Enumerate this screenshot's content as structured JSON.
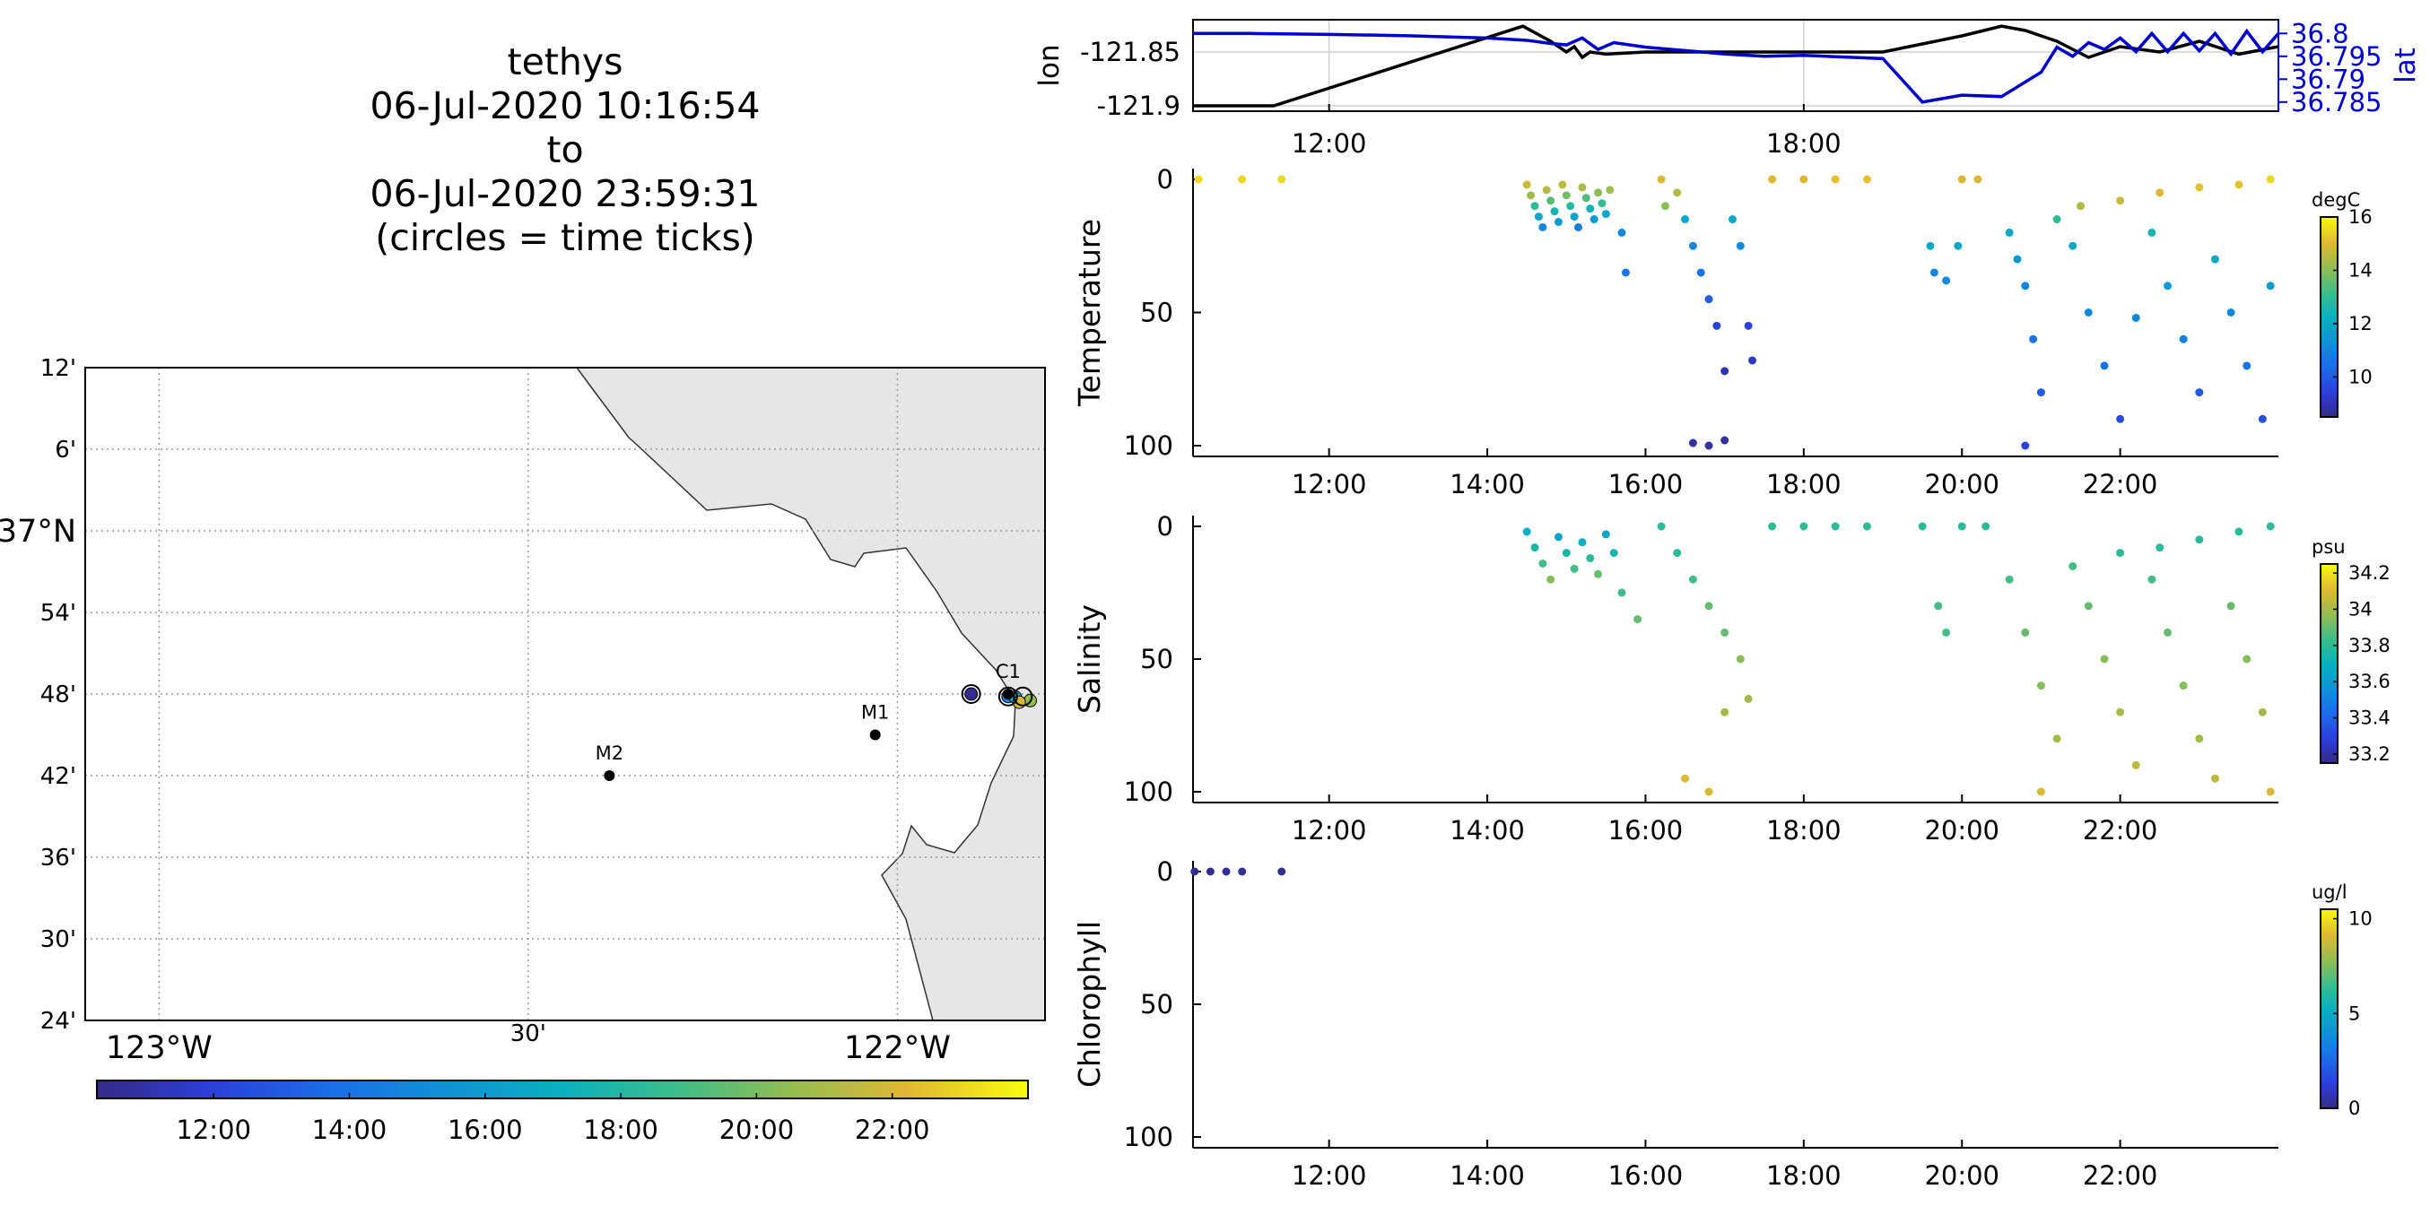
{
  "title_lines": [
    "tethys",
    "06-Jul-2020 10:16:54",
    "to",
    "06-Jul-2020 23:59:31",
    "(circles = time ticks)"
  ],
  "colors": {
    "land": "#e6e6e6",
    "lat_line": "#0000cc",
    "lon_line": "#000000"
  },
  "chart_data": [
    {
      "type": "line",
      "panel": "lon-lat",
      "x_unit": "hour of day",
      "xlim": [
        10.28,
        24.0
      ],
      "xticks": [
        12,
        18
      ],
      "xtick_labels": [
        "12:00",
        "18:00"
      ],
      "ylabel_left": "lon",
      "ylabel_right": "lat",
      "ylim_left": [
        -121.905,
        -121.82
      ],
      "ylim_right": [
        36.783,
        36.803
      ],
      "yticks_left": [
        -121.9,
        -121.85
      ],
      "ytick_labels_left": [
        "-121.9",
        "-121.85"
      ],
      "yticks_right": [
        36.785,
        36.79,
        36.795,
        36.8
      ],
      "ytick_labels_right": [
        "36.785",
        "36.79",
        "36.795",
        "36.8"
      ],
      "grid": true,
      "series": [
        {
          "axis": "left",
          "color": "#000000",
          "x": [
            10.28,
            11.3,
            14.45,
            14.8,
            15.0,
            15.1,
            15.2,
            15.3,
            15.5,
            16.0,
            17.0,
            18.0,
            19.0,
            20.0,
            20.5,
            20.8,
            21.2,
            21.6,
            22.0,
            22.5,
            23.0,
            23.5,
            24.0
          ],
          "y": [
            -121.9,
            -121.9,
            -121.826,
            -121.84,
            -121.85,
            -121.845,
            -121.855,
            -121.85,
            -121.852,
            -121.85,
            -121.85,
            -121.85,
            -121.85,
            -121.835,
            -121.826,
            -121.83,
            -121.84,
            -121.855,
            -121.845,
            -121.85,
            -121.84,
            -121.852,
            -121.845
          ]
        },
        {
          "axis": "right",
          "color": "#0000cc",
          "x": [
            10.28,
            11.0,
            12.0,
            13.0,
            14.0,
            14.5,
            14.8,
            15.0,
            15.2,
            15.4,
            15.6,
            16.0,
            17.0,
            17.5,
            18.0,
            19.0,
            19.5,
            20.0,
            20.5,
            21.0,
            21.2,
            21.4,
            21.6,
            21.8,
            22.0,
            22.2,
            22.4,
            22.6,
            22.8,
            23.0,
            23.2,
            23.4,
            23.6,
            23.8,
            24.0
          ],
          "y": [
            36.8,
            36.8,
            36.7998,
            36.7995,
            36.799,
            36.7985,
            36.7978,
            36.7975,
            36.799,
            36.7965,
            36.798,
            36.797,
            36.7955,
            36.795,
            36.7952,
            36.7945,
            36.785,
            36.7865,
            36.7862,
            36.7915,
            36.797,
            36.795,
            36.798,
            36.7965,
            36.799,
            36.796,
            36.8,
            36.796,
            36.8,
            36.7962,
            36.8,
            36.7955,
            36.8005,
            36.796,
            36.8
          ]
        }
      ]
    },
    {
      "type": "scatter",
      "panel": "temperature",
      "ylabel": "Temperature",
      "ylim": [
        100,
        0
      ],
      "yticks": [
        0,
        50,
        100
      ],
      "xlim": [
        10.28,
        24.0
      ],
      "xticks": [
        12,
        14,
        16,
        18,
        20,
        22
      ],
      "xtick_labels": [
        "12:00",
        "14:00",
        "16:00",
        "18:00",
        "20:00",
        "22:00"
      ],
      "colorbar": {
        "label": "degC",
        "range": [
          8.5,
          16
        ],
        "ticks": [
          10,
          12,
          14,
          16
        ],
        "tick_labels": [
          "10",
          "12",
          "14",
          "16"
        ]
      },
      "points": [
        [
          10.35,
          0,
          15.5
        ],
        [
          10.9,
          0,
          15.5
        ],
        [
          11.4,
          0,
          15.5
        ],
        [
          14.5,
          2,
          14.8
        ],
        [
          14.55,
          6,
          14.2
        ],
        [
          14.6,
          10,
          13
        ],
        [
          14.65,
          14,
          12
        ],
        [
          14.7,
          18,
          11
        ],
        [
          14.75,
          4,
          14.5
        ],
        [
          14.8,
          8,
          13.5
        ],
        [
          14.85,
          12,
          12.5
        ],
        [
          14.9,
          16,
          11.5
        ],
        [
          14.95,
          2,
          14.6
        ],
        [
          15.0,
          6,
          13.8
        ],
        [
          15.05,
          10,
          12.8
        ],
        [
          15.1,
          14,
          11.8
        ],
        [
          15.15,
          18,
          10.8
        ],
        [
          15.2,
          3,
          14.4
        ],
        [
          15.25,
          7,
          13.4
        ],
        [
          15.3,
          11,
          12.4
        ],
        [
          15.35,
          15,
          11.4
        ],
        [
          15.4,
          5,
          14
        ],
        [
          15.45,
          9,
          13
        ],
        [
          15.5,
          13,
          12
        ],
        [
          15.55,
          4,
          14.2
        ],
        [
          15.7,
          20,
          11
        ],
        [
          15.75,
          35,
          10.5
        ],
        [
          16.2,
          0,
          15
        ],
        [
          16.25,
          10,
          14
        ],
        [
          16.4,
          5,
          14.5
        ],
        [
          16.5,
          15,
          12
        ],
        [
          16.6,
          25,
          11
        ],
        [
          16.7,
          35,
          10.5
        ],
        [
          16.8,
          45,
          10
        ],
        [
          16.9,
          55,
          9.5
        ],
        [
          17.0,
          72,
          9
        ],
        [
          16.6,
          99,
          8.8
        ],
        [
          16.8,
          100,
          8.8
        ],
        [
          17.0,
          98,
          8.8
        ],
        [
          17.1,
          15,
          12
        ],
        [
          17.2,
          25,
          11
        ],
        [
          17.3,
          55,
          9.5
        ],
        [
          17.35,
          68,
          9.2
        ],
        [
          17.6,
          0,
          15
        ],
        [
          18.0,
          0,
          15
        ],
        [
          18.4,
          0,
          15.2
        ],
        [
          18.8,
          0,
          15.2
        ],
        [
          19.6,
          25,
          12
        ],
        [
          19.65,
          35,
          11
        ],
        [
          19.8,
          38,
          11
        ],
        [
          19.95,
          25,
          12
        ],
        [
          20.0,
          0,
          15
        ],
        [
          20.2,
          0,
          15
        ],
        [
          20.6,
          20,
          12
        ],
        [
          20.7,
          30,
          11.5
        ],
        [
          20.8,
          40,
          11
        ],
        [
          20.9,
          60,
          10.5
        ],
        [
          21.0,
          80,
          10
        ],
        [
          20.8,
          100,
          9.5
        ],
        [
          21.2,
          15,
          13
        ],
        [
          21.4,
          25,
          12
        ],
        [
          21.6,
          50,
          11
        ],
        [
          21.8,
          70,
          10.5
        ],
        [
          22.0,
          90,
          9.8
        ],
        [
          22.2,
          52,
          11
        ],
        [
          22.4,
          20,
          12.5
        ],
        [
          22.6,
          40,
          11.5
        ],
        [
          22.8,
          60,
          10.8
        ],
        [
          23.0,
          80,
          10
        ],
        [
          23.2,
          30,
          12
        ],
        [
          23.4,
          50,
          11
        ],
        [
          23.6,
          70,
          10.5
        ],
        [
          23.8,
          90,
          9.8
        ],
        [
          23.9,
          40,
          11.5
        ],
        [
          21.5,
          10,
          14.5
        ],
        [
          22.0,
          8,
          14.8
        ],
        [
          22.5,
          5,
          15
        ],
        [
          23.0,
          3,
          15.2
        ],
        [
          23.5,
          2,
          15.2
        ],
        [
          23.9,
          0,
          15.5
        ]
      ]
    },
    {
      "type": "scatter",
      "panel": "salinity",
      "ylabel": "Salinity",
      "ylim": [
        100,
        0
      ],
      "yticks": [
        0,
        50,
        100
      ],
      "xlim": [
        10.28,
        24.0
      ],
      "xticks": [
        12,
        14,
        16,
        18,
        20,
        22
      ],
      "xtick_labels": [
        "12:00",
        "14:00",
        "16:00",
        "18:00",
        "20:00",
        "22:00"
      ],
      "colorbar": {
        "label": "psu",
        "range": [
          33.15,
          34.25
        ],
        "ticks": [
          33.2,
          33.4,
          33.6,
          33.8,
          34,
          34.2
        ],
        "tick_labels": [
          "33.2",
          "33.4",
          "33.6",
          "33.8",
          "34",
          "34.2"
        ]
      },
      "points": [
        [
          14.5,
          2,
          33.7
        ],
        [
          14.6,
          8,
          33.75
        ],
        [
          14.7,
          14,
          33.85
        ],
        [
          14.8,
          20,
          33.95
        ],
        [
          14.9,
          4,
          33.65
        ],
        [
          15.0,
          10,
          33.75
        ],
        [
          15.1,
          16,
          33.85
        ],
        [
          15.2,
          6,
          33.7
        ],
        [
          15.3,
          12,
          33.8
        ],
        [
          15.4,
          18,
          33.9
        ],
        [
          15.5,
          3,
          33.65
        ],
        [
          15.6,
          10,
          33.75
        ],
        [
          15.7,
          25,
          33.85
        ],
        [
          15.9,
          35,
          33.9
        ],
        [
          16.2,
          0,
          33.8
        ],
        [
          16.4,
          10,
          33.8
        ],
        [
          16.6,
          20,
          33.85
        ],
        [
          16.8,
          30,
          33.9
        ],
        [
          17.0,
          40,
          33.9
        ],
        [
          17.2,
          50,
          33.95
        ],
        [
          16.5,
          95,
          34.1
        ],
        [
          16.8,
          100,
          34.1
        ],
        [
          17.0,
          70,
          34.0
        ],
        [
          17.3,
          65,
          34.0
        ],
        [
          17.6,
          0,
          33.8
        ],
        [
          18.0,
          0,
          33.8
        ],
        [
          18.4,
          0,
          33.8
        ],
        [
          18.8,
          0,
          33.8
        ],
        [
          19.5,
          0,
          33.8
        ],
        [
          19.7,
          30,
          33.85
        ],
        [
          19.8,
          40,
          33.85
        ],
        [
          20.0,
          0,
          33.8
        ],
        [
          20.3,
          0,
          33.8
        ],
        [
          20.6,
          20,
          33.85
        ],
        [
          20.8,
          40,
          33.9
        ],
        [
          21.0,
          60,
          33.95
        ],
        [
          21.2,
          80,
          34.0
        ],
        [
          21.0,
          100,
          34.1
        ],
        [
          21.4,
          15,
          33.85
        ],
        [
          21.6,
          30,
          33.9
        ],
        [
          21.8,
          50,
          33.95
        ],
        [
          22.0,
          70,
          34.0
        ],
        [
          22.2,
          90,
          34.05
        ],
        [
          22.4,
          20,
          33.85
        ],
        [
          22.6,
          40,
          33.9
        ],
        [
          22.8,
          60,
          33.95
        ],
        [
          23.0,
          80,
          34.0
        ],
        [
          23.2,
          95,
          34.05
        ],
        [
          23.4,
          30,
          33.9
        ],
        [
          23.6,
          50,
          33.95
        ],
        [
          23.8,
          70,
          34.0
        ],
        [
          23.9,
          100,
          34.1
        ],
        [
          22.0,
          10,
          33.8
        ],
        [
          22.5,
          8,
          33.8
        ],
        [
          23.0,
          5,
          33.8
        ],
        [
          23.5,
          2,
          33.8
        ],
        [
          23.9,
          0,
          33.8
        ]
      ]
    },
    {
      "type": "scatter",
      "panel": "chlorophyll",
      "ylabel": "Chlorophyll",
      "ylim": [
        100,
        0
      ],
      "yticks": [
        0,
        50,
        100
      ],
      "xlim": [
        10.28,
        24.0
      ],
      "xticks": [
        12,
        14,
        16,
        18,
        20,
        22
      ],
      "xtick_labels": [
        "12:00",
        "14:00",
        "16:00",
        "18:00",
        "20:00",
        "22:00"
      ],
      "colorbar": {
        "label": "ug/l",
        "range": [
          0,
          10.5
        ],
        "ticks": [
          0,
          5,
          10
        ],
        "tick_labels": [
          "0",
          "5",
          "10"
        ]
      },
      "points": [
        [
          10.3,
          0,
          0.2
        ],
        [
          10.5,
          0,
          0.2
        ],
        [
          10.7,
          0,
          0.2
        ],
        [
          10.9,
          0,
          0.2
        ],
        [
          11.4,
          0,
          0.2
        ]
      ]
    },
    {
      "type": "map",
      "panel": "map",
      "lon_range": [
        -123.1,
        -121.8
      ],
      "lat_range": [
        36.4,
        37.2
      ],
      "lat_ticks": [
        36.4,
        36.5,
        36.6,
        36.7,
        36.8,
        36.9,
        37.0,
        37.1,
        37.2
      ],
      "lat_tick_labels": [
        "24'",
        "30'",
        "36'",
        "42'",
        "48'",
        "54'",
        "37°N",
        "6'",
        "12'"
      ],
      "lon_ticks": [
        -123.0,
        -122.5,
        -122.0
      ],
      "lon_tick_labels": [
        "123°W",
        "30'",
        "122°W"
      ],
      "grid": true,
      "stations": [
        {
          "name": "M2",
          "lon": -122.39,
          "lat": 36.7
        },
        {
          "name": "M1",
          "lon": -122.03,
          "lat": 36.75
        },
        {
          "name": "C1",
          "lon": -121.85,
          "lat": 36.8
        }
      ],
      "track": [
        [
          -121.9,
          36.8,
          10.5
        ],
        [
          -121.85,
          36.797,
          14.5
        ],
        [
          -121.84,
          36.796,
          17.0
        ],
        [
          -121.82,
          36.792,
          20.5
        ],
        [
          -121.835,
          36.79,
          22.0
        ]
      ],
      "time_ticks": [
        [
          -121.9,
          36.8,
          10.5
        ],
        [
          -121.85,
          36.797,
          14.5
        ],
        [
          -121.83,
          36.797,
          17.0
        ]
      ],
      "colorbar": {
        "orientation": "horizontal",
        "range": [
          10.28,
          24.0
        ],
        "ticks": [
          12,
          14,
          16,
          18,
          20,
          22
        ],
        "tick_labels": [
          "12:00",
          "14:00",
          "16:00",
          "18:00",
          "20:00",
          "22:00"
        ]
      }
    }
  ]
}
